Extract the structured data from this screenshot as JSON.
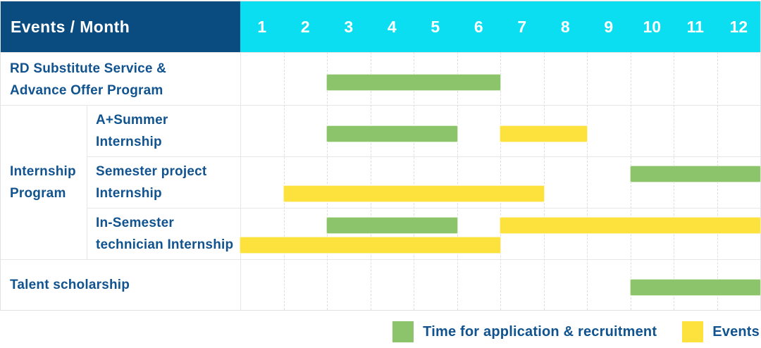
{
  "header": {
    "title": "Events / Month",
    "months": [
      "1",
      "2",
      "3",
      "4",
      "5",
      "6",
      "7",
      "8",
      "9",
      "10",
      "11",
      "12"
    ]
  },
  "colors": {
    "header_bg": "#0a4b80",
    "months_bg": "#0cdef2",
    "application_green": "#8bc46a",
    "event_yellow": "#fde23e",
    "label_text": "#11538f",
    "grid_line": "#e7e7e7"
  },
  "chart_data": {
    "type": "gantt",
    "title": "Events / Month",
    "x_axis": {
      "label": "Month",
      "ticks": [
        1,
        2,
        3,
        4,
        5,
        6,
        7,
        8,
        9,
        10,
        11,
        12
      ]
    },
    "series": [
      {
        "id": "application",
        "label": "Time for application & recruitment",
        "color": "#8bc46a"
      },
      {
        "id": "event",
        "label": "Events",
        "color": "#fde23e"
      }
    ],
    "row_group": {
      "label_lines": [
        "Internship",
        "Program"
      ],
      "spans_rows": [
        1,
        2,
        3
      ]
    },
    "rows": [
      {
        "name": "rd-substitute-service",
        "label_lines": [
          "RD Substitute Service &",
          "Advance Offer Program"
        ],
        "grouped": false,
        "bars": [
          {
            "series": "application",
            "start_month": 3,
            "end_month": 6,
            "lane": "single"
          }
        ]
      },
      {
        "name": "a-plus-summer-internship",
        "label_lines": [
          "A+Summer",
          "Internship"
        ],
        "grouped": true,
        "bars": [
          {
            "series": "application",
            "start_month": 3,
            "end_month": 5,
            "lane": "single"
          },
          {
            "series": "event",
            "start_month": 7,
            "end_month": 8,
            "lane": "single"
          }
        ]
      },
      {
        "name": "semester-project-internship",
        "label_lines": [
          "Semester project",
          "Internship"
        ],
        "grouped": true,
        "bars": [
          {
            "series": "application",
            "start_month": 10,
            "end_month": 12,
            "lane": "upper"
          },
          {
            "series": "event",
            "start_month": 2,
            "end_month": 7,
            "lane": "lower"
          }
        ]
      },
      {
        "name": "in-semester-technician-internship",
        "label_lines": [
          "In-Semester",
          "technician Internship"
        ],
        "grouped": true,
        "bars": [
          {
            "series": "application",
            "start_month": 3,
            "end_month": 5,
            "lane": "upper"
          },
          {
            "series": "event",
            "start_month": 7,
            "end_month": 12,
            "lane": "upper"
          },
          {
            "series": "event",
            "start_month": 1,
            "end_month": 6,
            "lane": "lower"
          }
        ]
      },
      {
        "name": "talent-scholarship",
        "label_lines": [
          "Talent scholarship"
        ],
        "grouped": false,
        "bars": [
          {
            "series": "application",
            "start_month": 10,
            "end_month": 12,
            "lane": "single"
          }
        ]
      }
    ]
  },
  "legend": {
    "items": [
      {
        "series": "application",
        "label": "Time for application & recruitment"
      },
      {
        "series": "event",
        "label": "Events"
      }
    ]
  }
}
